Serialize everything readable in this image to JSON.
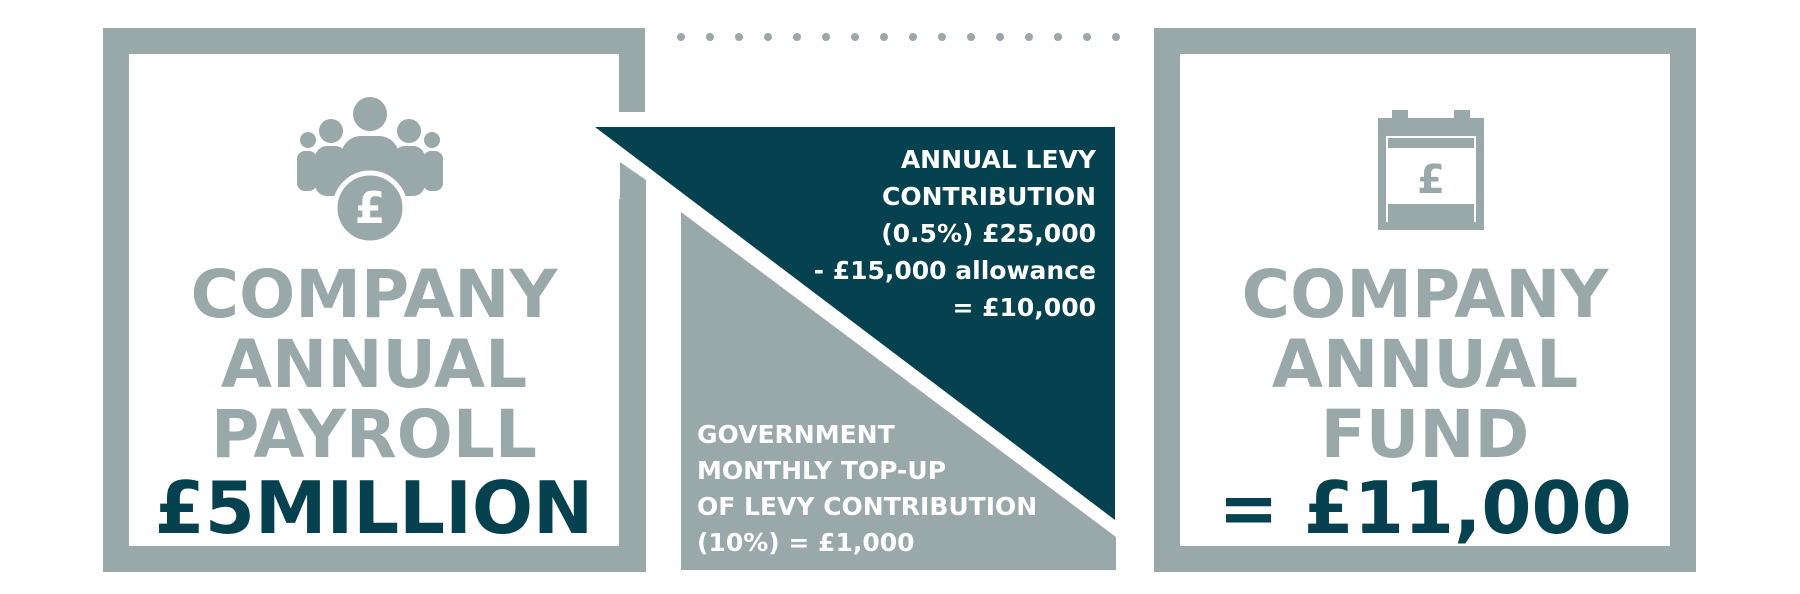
{
  "colors": {
    "grey": "#99a8a8",
    "dark_teal": "#06414f",
    "white": "#ffffff"
  },
  "payroll_panel": {
    "icon": "people-pound-icon",
    "icon_symbol": "£",
    "lines": [
      "COMPANY",
      "ANNUAL",
      "PAYROLL"
    ],
    "amount": "£5MILLION"
  },
  "levy": {
    "lines": [
      "ANNUAL LEVY",
      "CONTRIBUTION",
      "(0.5%) £25,000",
      "- £15,000 allowance",
      "= £10,000"
    ]
  },
  "government": {
    "lines": [
      "GOVERNMENT",
      "MONTHLY TOP-UP",
      "OF LEVY CONTRIBUTION",
      "(10%) = £1,000"
    ]
  },
  "fund_panel": {
    "icon": "calendar-pound-icon",
    "icon_symbol": "£",
    "lines": [
      "COMPANY",
      "ANNUAL",
      "FUND"
    ],
    "amount": "= £11,000"
  }
}
